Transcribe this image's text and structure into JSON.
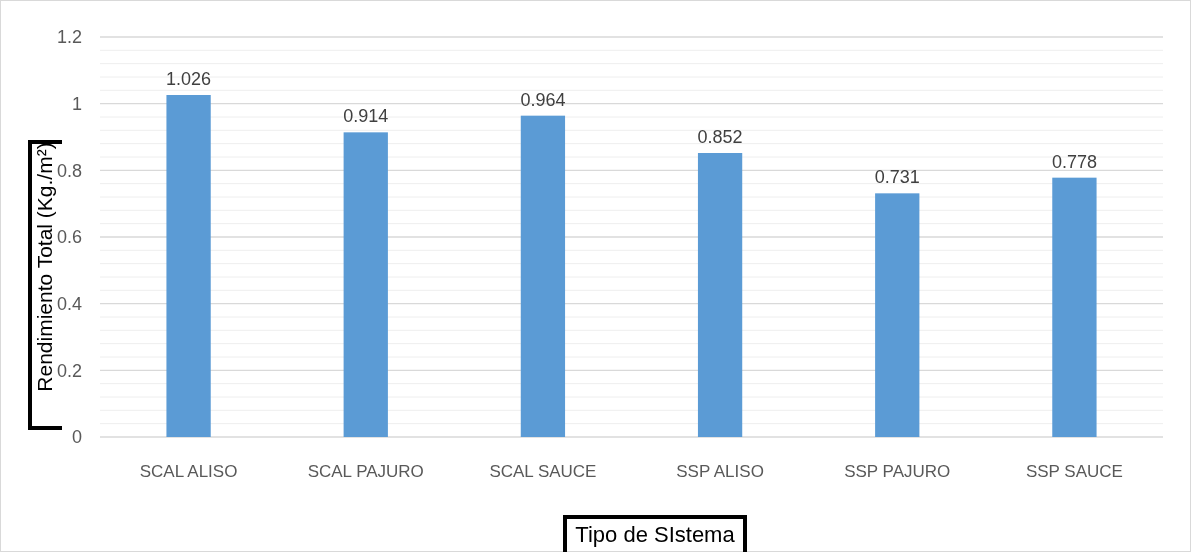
{
  "chart_data": {
    "type": "bar",
    "categories": [
      "SCAL ALISO",
      "SCAL PAJURO",
      "SCAL SAUCE",
      "SSP ALISO",
      "SSP PAJURO",
      "SSP SAUCE"
    ],
    "values": [
      1.026,
      0.914,
      0.964,
      0.852,
      0.731,
      0.778
    ],
    "color": "#5b9bd5",
    "xlabel": "Tipo de SIstema",
    "ylabel": "Rendimiento Total (Kg./m²)",
    "ylim": [
      0,
      1.2
    ],
    "yticks": [
      0,
      {
        "value": 0.04,
        "label": null
      },
      {
        "value": 0.08,
        "label": null
      },
      {
        "value": 0.12,
        "label": null
      },
      {
        "value": 0.16,
        "label": null
      },
      0.2,
      {
        "value": 0.24,
        "label": null
      },
      {
        "value": 0.28,
        "label": null
      },
      {
        "value": 0.32,
        "label": null
      },
      {
        "value": 0.36,
        "label": null
      },
      0.4,
      {
        "value": 0.44,
        "label": null
      },
      {
        "value": 0.48,
        "label": null
      },
      {
        "value": 0.52,
        "label": null
      },
      {
        "value": 0.56,
        "label": null
      },
      0.6,
      {
        "value": 0.64,
        "label": null
      },
      {
        "value": 0.68,
        "label": null
      },
      {
        "value": 0.72,
        "label": null
      },
      {
        "value": 0.76,
        "label": null
      },
      0.8,
      {
        "value": 0.84,
        "label": null
      },
      {
        "value": 0.88,
        "label": null
      },
      {
        "value": 0.92,
        "label": null
      },
      {
        "value": 0.96,
        "label": null
      },
      1,
      {
        "value": 1.04,
        "label": null
      },
      {
        "value": 1.08,
        "label": null
      },
      {
        "value": 1.12,
        "label": null
      },
      {
        "value": 1.16,
        "label": null
      },
      1.2
    ],
    "grid": true,
    "data_labels": true
  }
}
